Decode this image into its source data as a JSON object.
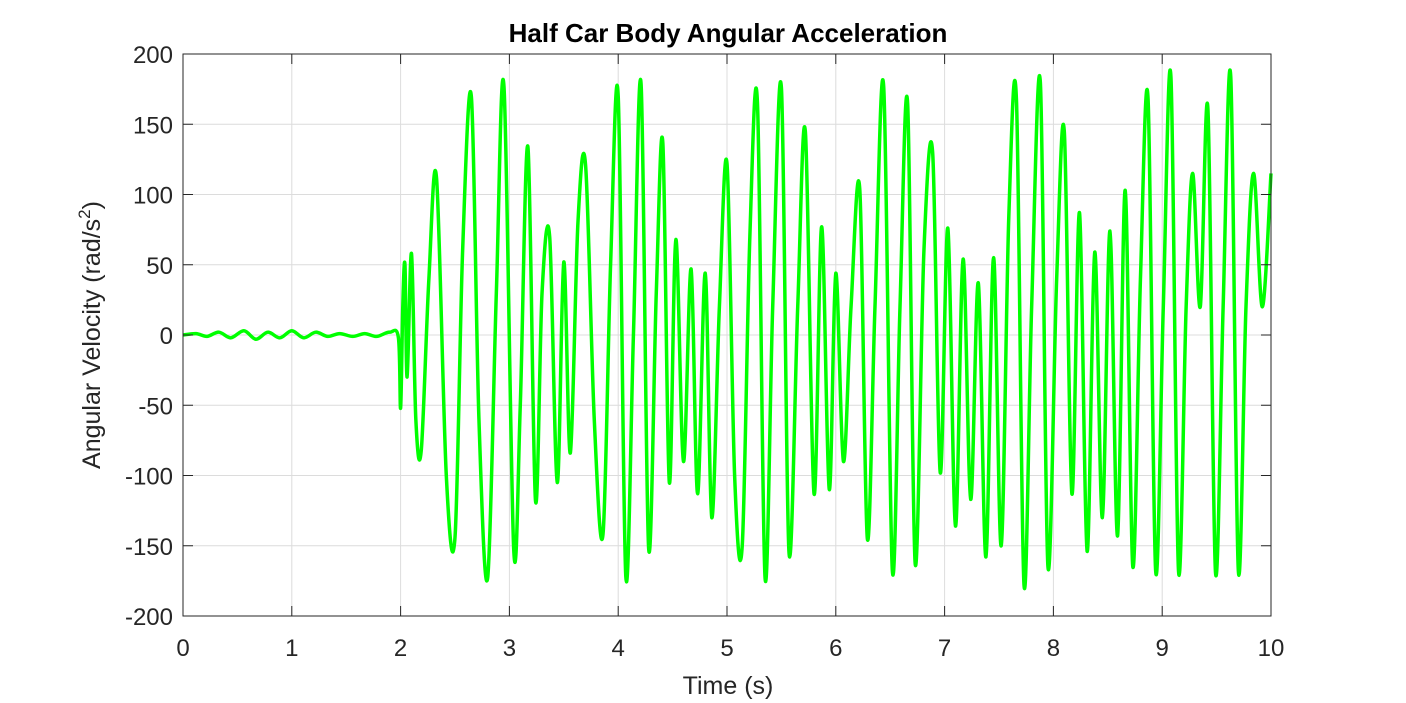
{
  "chart_data": {
    "type": "line",
    "title": "Half Car Body Angular Acceleration",
    "xlabel": "Time (s)",
    "ylabel": "Angular Velocity (rad/s",
    "ylabel_sup": "2",
    "ylabel_close": ")",
    "xlim": [
      0,
      10
    ],
    "ylim": [
      -200,
      200
    ],
    "xticks": [
      "0",
      "1",
      "2",
      "3",
      "4",
      "5",
      "6",
      "7",
      "8",
      "9",
      "10"
    ],
    "yticks": [
      "200",
      "150",
      "100",
      "50",
      "0",
      "-50",
      "-100",
      "-150",
      "-200"
    ],
    "grid": true,
    "series": [
      {
        "color": "#00ff00",
        "x": [
          0,
          0.12,
          0.22,
          0.33,
          0.44,
          0.56,
          0.67,
          0.78,
          0.89,
          1.0,
          1.11,
          1.22,
          1.33,
          1.44,
          1.56,
          1.67,
          1.78,
          1.9,
          1.98,
          2.0,
          2.02,
          2.04,
          2.06,
          2.1,
          2.14,
          2.19,
          2.26,
          2.33,
          2.42,
          2.5,
          2.57,
          2.65,
          2.72,
          2.8,
          2.88,
          2.95,
          3.04,
          3.1,
          3.17,
          3.24,
          3.3,
          3.37,
          3.44,
          3.5,
          3.56,
          3.63,
          3.7,
          3.78,
          3.86,
          3.93,
          4.0,
          4.07,
          4.14,
          4.21,
          4.28,
          4.35,
          4.41,
          4.47,
          4.53,
          4.6,
          4.67,
          4.73,
          4.8,
          4.86,
          4.93,
          5.0,
          5.07,
          5.14,
          5.21,
          5.28,
          5.35,
          5.42,
          5.5,
          5.57,
          5.65,
          5.72,
          5.8,
          5.87,
          5.94,
          6.0,
          6.07,
          6.14,
          6.22,
          6.29,
          6.36,
          6.44,
          6.52,
          6.59,
          6.66,
          6.73,
          6.81,
          6.89,
          6.96,
          7.03,
          7.1,
          7.17,
          7.24,
          7.31,
          7.38,
          7.45,
          7.52,
          7.59,
          7.66,
          7.73,
          7.8,
          7.88,
          7.95,
          8.03,
          8.1,
          8.17,
          8.24,
          8.31,
          8.38,
          8.45,
          8.52,
          8.59,
          8.66,
          8.73,
          8.8,
          8.87,
          8.94,
          9.01,
          9.08,
          9.15,
          9.22,
          9.28,
          9.35,
          9.42,
          9.49,
          9.56,
          9.63,
          9.7,
          9.77,
          9.84,
          9.92,
          10.0
        ],
        "y": [
          0,
          1,
          -1,
          2,
          -2,
          3,
          -3,
          2,
          -2,
          3,
          -2,
          2,
          -1,
          1,
          -1,
          1,
          -1,
          2,
          -2,
          -52,
          20,
          50,
          -30,
          58,
          -60,
          -82,
          40,
          112,
          -100,
          -144,
          60,
          170,
          -60,
          -173,
          30,
          177,
          -153,
          -50,
          134,
          -118,
          30,
          70,
          -105,
          52,
          -84,
          80,
          121,
          -60,
          -142,
          50,
          170,
          -172,
          0,
          179,
          -152,
          30,
          137,
          -105,
          68,
          -90,
          47,
          -113,
          44,
          -130,
          20,
          122,
          -100,
          -150,
          70,
          165,
          -173,
          20,
          176,
          -155,
          20,
          145,
          -113,
          77,
          -110,
          44,
          -90,
          20,
          104,
          -145,
          20,
          177,
          -168,
          20,
          165,
          -163,
          60,
          130,
          -98,
          76,
          -136,
          54,
          -117,
          37,
          -158,
          55,
          -150,
          84,
          168,
          -178,
          20,
          180,
          -165,
          40,
          145,
          -113,
          87,
          -154,
          59,
          -130,
          74,
          -143,
          103,
          -165,
          40,
          168,
          -168,
          20,
          184,
          -168,
          20,
          115,
          20,
          161,
          -169,
          20,
          184,
          -168,
          20,
          115,
          20,
          115
        ]
      }
    ]
  }
}
